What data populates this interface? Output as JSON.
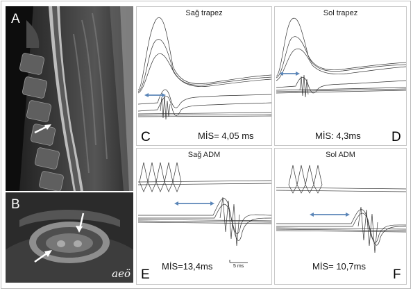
{
  "panels": {
    "A": {
      "label": "A"
    },
    "B": {
      "label": "B",
      "signature": "aeö"
    },
    "C": {
      "label": "C",
      "title": "Sağ trapez",
      "mis": "MİS= 4,05 ms"
    },
    "D": {
      "label": "D",
      "title": "Sol trapez",
      "mis": "MİS: 4,3ms"
    },
    "E": {
      "label": "E",
      "title": "Sağ ADM",
      "mis": "MİS=13,4ms",
      "scale": "5 ms"
    },
    "F": {
      "label": "F",
      "title": "Sol ADM",
      "mis": "MİS= 10,7ms"
    }
  },
  "colors": {
    "arrow": "#5b86b8",
    "trace": "#333333",
    "mri_bg": "#111111"
  }
}
